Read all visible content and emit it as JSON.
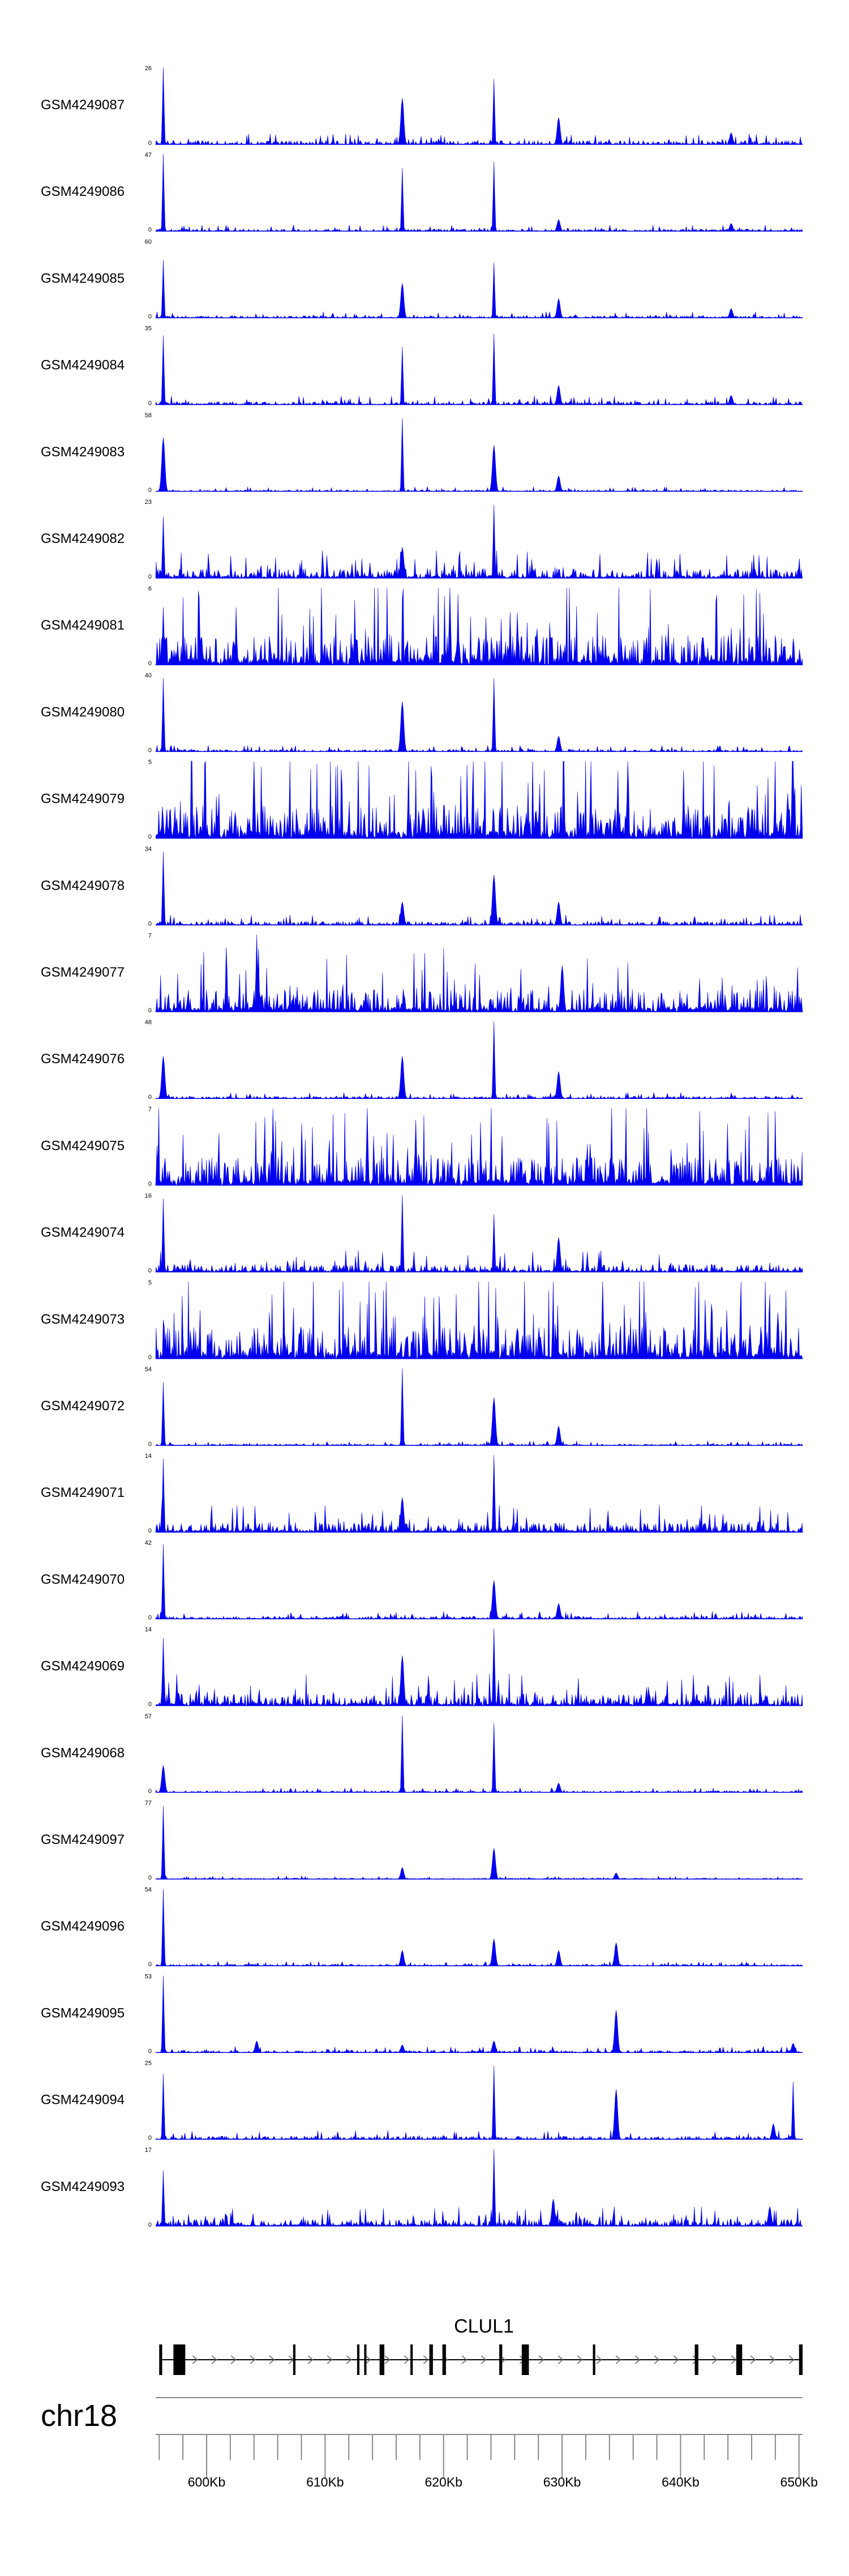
{
  "chart_data": {
    "type": "area",
    "description_colors": {
      "signal": "#0000ee",
      "gene": "#000000",
      "axis": "#888888"
    },
    "x_range_kb": [
      595.7,
      650.3
    ],
    "tracks": [
      {
        "name": "GSM4249087",
        "ymax": "26",
        "ymin": "0",
        "noise": 0.07,
        "peaks": [
          [
            596.3,
            1.0
          ],
          [
            616.5,
            0.6
          ],
          [
            624.2,
            0.85
          ],
          [
            629.7,
            0.35
          ],
          [
            644.2,
            0.15
          ]
        ]
      },
      {
        "name": "GSM4249086",
        "ymax": "47",
        "ymin": "0",
        "noise": 0.04,
        "peaks": [
          [
            596.3,
            1.0
          ],
          [
            616.5,
            0.82
          ],
          [
            624.2,
            0.9
          ],
          [
            629.7,
            0.15
          ],
          [
            644.2,
            0.1
          ]
        ]
      },
      {
        "name": "GSM4249085",
        "ymax": "60",
        "ymin": "0",
        "noise": 0.04,
        "peaks": [
          [
            596.3,
            0.75
          ],
          [
            616.5,
            0.45
          ],
          [
            624.2,
            0.72
          ],
          [
            629.7,
            0.25
          ],
          [
            644.2,
            0.12
          ]
        ]
      },
      {
        "name": "GSM4249084",
        "ymax": "35",
        "ymin": "0",
        "noise": 0.06,
        "peaks": [
          [
            596.3,
            0.9
          ],
          [
            616.5,
            0.75
          ],
          [
            624.2,
            0.92
          ],
          [
            629.7,
            0.25
          ],
          [
            644.2,
            0.12
          ]
        ]
      },
      {
        "name": "GSM4249083",
        "ymax": "58",
        "ymin": "0",
        "noise": 0.03,
        "peaks": [
          [
            596.3,
            0.7
          ],
          [
            616.5,
            0.95
          ],
          [
            624.2,
            0.6
          ],
          [
            629.7,
            0.2
          ]
        ]
      },
      {
        "name": "GSM4249082",
        "ymax": "23",
        "ymin": "0",
        "noise": 0.18,
        "peaks": [
          [
            596.3,
            0.8
          ],
          [
            616.5,
            0.4
          ],
          [
            624.2,
            0.95
          ]
        ]
      },
      {
        "name": "GSM4249081",
        "ymax": "6",
        "ymin": "0",
        "noise": 0.55,
        "peaks": [
          [
            596.3,
            0.75
          ],
          [
            620.5,
            1.0
          ]
        ]
      },
      {
        "name": "GSM4249080",
        "ymax": "40",
        "ymin": "0",
        "noise": 0.04,
        "peaks": [
          [
            596.3,
            0.95
          ],
          [
            616.5,
            0.65
          ],
          [
            624.2,
            0.95
          ],
          [
            629.7,
            0.2
          ]
        ]
      },
      {
        "name": "GSM4249079",
        "ymax": "5",
        "ymin": "0",
        "noise": 0.62,
        "peaks": [
          [
            604.0,
            1.0
          ],
          [
            635.5,
            1.0
          ],
          [
            649.5,
            1.0
          ]
        ]
      },
      {
        "name": "GSM4249078",
        "ymax": "34",
        "ymin": "0",
        "noise": 0.07,
        "peaks": [
          [
            596.3,
            0.95
          ],
          [
            616.5,
            0.3
          ],
          [
            624.2,
            0.65
          ],
          [
            629.7,
            0.3
          ]
        ]
      },
      {
        "name": "GSM4249077",
        "ymax": "7",
        "ymin": "0",
        "noise": 0.42,
        "peaks": [
          [
            604.2,
            1.0
          ],
          [
            630.0,
            0.6
          ]
        ]
      },
      {
        "name": "GSM4249076",
        "ymax": "48",
        "ymin": "0",
        "noise": 0.04,
        "peaks": [
          [
            596.3,
            0.55
          ],
          [
            616.5,
            0.55
          ],
          [
            624.2,
            1.0
          ],
          [
            629.7,
            0.35
          ]
        ]
      },
      {
        "name": "GSM4249075",
        "ymax": "7",
        "ymin": "0",
        "noise": 0.52,
        "peaks": [
          [
            613.5,
            1.0
          ],
          [
            617.6,
            0.85
          ]
        ]
      },
      {
        "name": "GSM4249074",
        "ymax": "16",
        "ymin": "0",
        "noise": 0.14,
        "peaks": [
          [
            596.3,
            0.95
          ],
          [
            616.5,
            1.0
          ],
          [
            624.2,
            0.75
          ],
          [
            629.7,
            0.45
          ]
        ]
      },
      {
        "name": "GSM4249073",
        "ymax": "5",
        "ymin": "0",
        "noise": 0.6,
        "peaks": [
          [
            633.4,
            1.0
          ]
        ]
      },
      {
        "name": "GSM4249072",
        "ymax": "54",
        "ymin": "0",
        "noise": 0.03,
        "peaks": [
          [
            596.3,
            0.82
          ],
          [
            616.5,
            1.0
          ],
          [
            624.2,
            0.62
          ],
          [
            629.7,
            0.25
          ]
        ]
      },
      {
        "name": "GSM4249071",
        "ymax": "14",
        "ymin": "0",
        "noise": 0.18,
        "peaks": [
          [
            596.3,
            0.95
          ],
          [
            616.5,
            0.45
          ],
          [
            624.2,
            1.0
          ]
        ]
      },
      {
        "name": "GSM4249070",
        "ymax": "42",
        "ymin": "0",
        "noise": 0.05,
        "peaks": [
          [
            596.3,
            0.97
          ],
          [
            624.2,
            0.5
          ],
          [
            629.7,
            0.2
          ]
        ]
      },
      {
        "name": "GSM4249069",
        "ymax": "14",
        "ymin": "0",
        "noise": 0.22,
        "peaks": [
          [
            596.3,
            0.88
          ],
          [
            616.5,
            0.65
          ],
          [
            624.2,
            1.0
          ]
        ]
      },
      {
        "name": "GSM4249068",
        "ymax": "57",
        "ymin": "0",
        "noise": 0.03,
        "peaks": [
          [
            596.3,
            0.35
          ],
          [
            616.5,
            1.0
          ],
          [
            624.2,
            0.9
          ],
          [
            629.7,
            0.12
          ]
        ]
      },
      {
        "name": "GSM4249097",
        "ymax": "77",
        "ymin": "0",
        "noise": 0.02,
        "peaks": [
          [
            596.3,
            0.95
          ],
          [
            616.5,
            0.15
          ],
          [
            624.2,
            0.4
          ],
          [
            634.5,
            0.08
          ]
        ]
      },
      {
        "name": "GSM4249096",
        "ymax": "54",
        "ymin": "0",
        "noise": 0.03,
        "peaks": [
          [
            596.3,
            1.0
          ],
          [
            616.5,
            0.2
          ],
          [
            624.2,
            0.35
          ],
          [
            629.7,
            0.2
          ],
          [
            634.5,
            0.3
          ]
        ]
      },
      {
        "name": "GSM4249095",
        "ymax": "53",
        "ymin": "0",
        "noise": 0.04,
        "peaks": [
          [
            596.3,
            1.0
          ],
          [
            604.2,
            0.15
          ],
          [
            616.5,
            0.1
          ],
          [
            624.2,
            0.15
          ],
          [
            634.5,
            0.55
          ],
          [
            649.5,
            0.12
          ]
        ]
      },
      {
        "name": "GSM4249094",
        "ymax": "25",
        "ymin": "0",
        "noise": 0.06,
        "peaks": [
          [
            596.3,
            0.85
          ],
          [
            624.2,
            0.95
          ],
          [
            634.5,
            0.65
          ],
          [
            647.8,
            0.2
          ],
          [
            649.5,
            0.75
          ]
        ]
      },
      {
        "name": "GSM4249093",
        "ymax": "17",
        "ymin": "0",
        "noise": 0.13,
        "peaks": [
          [
            596.3,
            0.72
          ],
          [
            624.2,
            1.0
          ],
          [
            629.2,
            0.35
          ],
          [
            647.5,
            0.25
          ]
        ]
      }
    ],
    "gene": {
      "name": "CLUL1",
      "strand": "+",
      "start_kb": 596.0,
      "end_kb": 650.3,
      "exons_kb": [
        [
          596.0,
          596.25
        ],
        [
          597.2,
          598.2
        ],
        [
          607.3,
          607.5
        ],
        [
          612.7,
          612.9
        ],
        [
          613.3,
          613.45
        ],
        [
          614.6,
          615.0
        ],
        [
          617.2,
          617.4
        ],
        [
          618.8,
          619.1
        ],
        [
          619.9,
          620.2
        ],
        [
          624.7,
          624.95
        ],
        [
          626.6,
          627.2
        ],
        [
          632.6,
          632.8
        ],
        [
          641.2,
          641.5
        ],
        [
          644.7,
          645.2
        ],
        [
          650.0,
          650.3
        ]
      ]
    },
    "chromosome": "chr18",
    "x_ticks": [
      {
        "pos": 600,
        "label": "600Kb"
      },
      {
        "pos": 610,
        "label": "610Kb"
      },
      {
        "pos": 620,
        "label": "620Kb"
      },
      {
        "pos": 630,
        "label": "630Kb"
      },
      {
        "pos": 640,
        "label": "640Kb"
      },
      {
        "pos": 650,
        "label": "650Kb"
      }
    ],
    "minor_tick_step_kb": 2
  }
}
